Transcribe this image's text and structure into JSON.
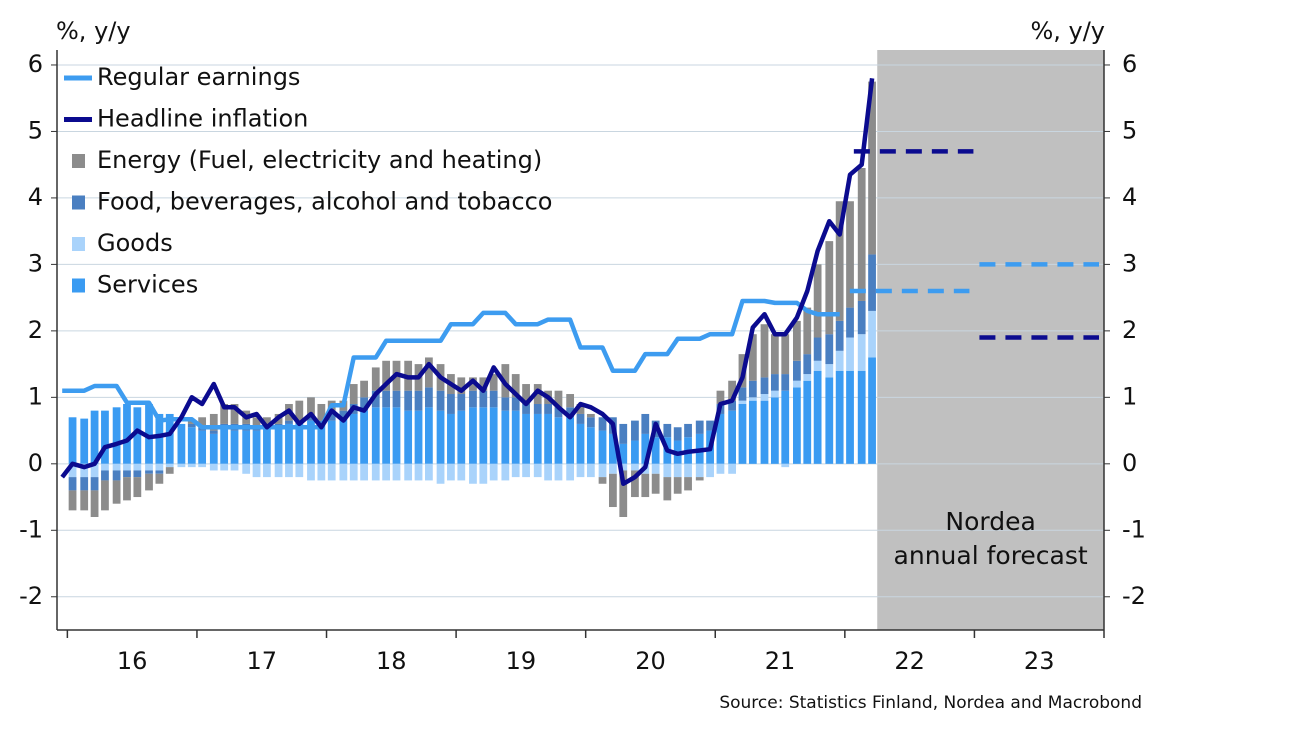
{
  "chart_data": {
    "type": "bar",
    "ylabel": "%, y/y",
    "y2label": "%, y/y",
    "source": "Source: Statistics Finland, Nordea and Macrobond",
    "forecast_label": [
      "Nordea",
      "annual forecast"
    ],
    "shade_xlim": [
      2022.25,
      2024.0
    ],
    "shade_color": "#c0c0c0",
    "xlim": [
      2015.92,
      2024.0
    ],
    "xticks": [
      {
        "value": 2016.5,
        "label": "16"
      },
      {
        "value": 2017.5,
        "label": "17"
      },
      {
        "value": 2018.5,
        "label": "18"
      },
      {
        "value": 2019.5,
        "label": "19"
      },
      {
        "value": 2020.5,
        "label": "20"
      },
      {
        "value": 2021.5,
        "label": "21"
      },
      {
        "value": 2022.5,
        "label": "22"
      },
      {
        "value": 2023.5,
        "label": "23"
      }
    ],
    "xminor": [
      2016,
      2017,
      2018,
      2019,
      2020,
      2021,
      2022,
      2023,
      2024
    ],
    "ylim": [
      -2.5,
      6.15
    ],
    "yticks": [
      -2,
      -1,
      0,
      1,
      2,
      3,
      4,
      5,
      6
    ],
    "y2lim": [
      -2.5,
      6.15
    ],
    "y2ticks": [
      -2,
      -1,
      0,
      1,
      2,
      3,
      4,
      5,
      6
    ],
    "grid": true,
    "legend": "top-left",
    "forecast_x": [
      2022.5,
      2023.5
    ],
    "x": [
      2015.96,
      2016.04,
      2016.13,
      2016.21,
      2016.29,
      2016.38,
      2016.46,
      2016.54,
      2016.63,
      2016.71,
      2016.79,
      2016.88,
      2016.96,
      2017.04,
      2017.13,
      2017.21,
      2017.29,
      2017.38,
      2017.46,
      2017.54,
      2017.63,
      2017.71,
      2017.79,
      2017.88,
      2017.96,
      2018.04,
      2018.13,
      2018.21,
      2018.29,
      2018.38,
      2018.46,
      2018.54,
      2018.63,
      2018.71,
      2018.79,
      2018.88,
      2018.96,
      2019.04,
      2019.13,
      2019.21,
      2019.29,
      2019.38,
      2019.46,
      2019.54,
      2019.63,
      2019.71,
      2019.79,
      2019.88,
      2019.96,
      2020.04,
      2020.13,
      2020.21,
      2020.29,
      2020.38,
      2020.46,
      2020.54,
      2020.63,
      2020.71,
      2020.79,
      2020.88,
      2020.96,
      2021.04,
      2021.13,
      2021.21,
      2021.29,
      2021.38,
      2021.46,
      2021.54,
      2021.63,
      2021.71,
      2021.79,
      2021.88,
      2021.96,
      2022.04,
      2022.13,
      2022.21
    ],
    "series": [
      {
        "name": "Regular earnings",
        "type": "line",
        "color": "#3d9cf0",
        "forecast_values": [
          2.6,
          3.0
        ],
        "values": [
          1.1,
          1.1,
          1.1,
          1.17,
          1.17,
          1.17,
          0.92,
          0.92,
          0.92,
          0.65,
          0.67,
          0.67,
          0.67,
          0.55,
          0.55,
          0.55,
          0.55,
          0.55,
          0.55,
          0.55,
          0.55,
          0.55,
          0.55,
          0.55,
          0.55,
          0.88,
          0.88,
          1.6,
          1.6,
          1.6,
          1.85,
          1.85,
          1.85,
          1.85,
          1.85,
          1.85,
          2.1,
          2.1,
          2.1,
          2.27,
          2.27,
          2.27,
          2.1,
          2.1,
          2.1,
          2.17,
          2.17,
          2.17,
          1.75,
          1.75,
          1.75,
          1.4,
          1.4,
          1.4,
          1.65,
          1.65,
          1.65,
          1.88,
          1.88,
          1.88,
          1.95,
          1.95,
          1.95,
          2.45,
          2.45,
          2.45,
          2.42,
          2.42,
          2.42,
          2.3,
          2.25,
          2.25,
          2.25,
          null,
          null,
          null
        ]
      },
      {
        "name": "Headline inflation",
        "type": "line",
        "color": "#0b0b8f",
        "forecast_values": [
          4.7,
          1.9
        ],
        "values": [
          -0.2,
          0.0,
          -0.05,
          0.0,
          0.25,
          0.3,
          0.35,
          0.5,
          0.4,
          0.42,
          0.45,
          0.7,
          1.0,
          0.9,
          1.2,
          0.85,
          0.85,
          0.7,
          0.75,
          0.55,
          0.7,
          0.8,
          0.6,
          0.75,
          0.55,
          0.8,
          0.65,
          0.85,
          0.8,
          1.05,
          1.2,
          1.35,
          1.3,
          1.3,
          1.5,
          1.3,
          1.2,
          1.1,
          1.25,
          1.1,
          1.45,
          1.2,
          1.05,
          0.9,
          1.1,
          1.0,
          0.85,
          0.7,
          0.9,
          0.85,
          0.75,
          0.6,
          -0.3,
          -0.2,
          -0.05,
          0.6,
          0.2,
          0.15,
          0.18,
          0.2,
          0.22,
          0.9,
          0.95,
          1.3,
          2.05,
          2.25,
          1.95,
          1.95,
          2.2,
          2.6,
          3.2,
          3.65,
          3.45,
          4.35,
          4.5,
          5.8
        ]
      },
      {
        "name": "Energy (Fuel, electricity and heating)",
        "type": "bar",
        "color": "#8c8c8c",
        "values": [
          null,
          -0.3,
          -0.3,
          -0.4,
          -0.45,
          -0.35,
          -0.35,
          -0.3,
          -0.25,
          -0.15,
          -0.1,
          0.0,
          0.05,
          0.15,
          0.25,
          0.3,
          0.3,
          0.2,
          0.15,
          0.1,
          0.15,
          0.25,
          0.3,
          0.3,
          0.25,
          0.2,
          0.15,
          0.3,
          0.25,
          0.35,
          0.45,
          0.45,
          0.45,
          0.4,
          0.45,
          0.4,
          0.3,
          0.25,
          0.2,
          0.2,
          0.25,
          0.5,
          0.35,
          0.3,
          0.3,
          0.2,
          0.25,
          0.2,
          0.15,
          0.05,
          -0.1,
          -0.5,
          -0.7,
          -0.4,
          -0.35,
          -0.3,
          -0.35,
          -0.25,
          -0.2,
          -0.05,
          0.0,
          0.2,
          0.3,
          0.5,
          0.7,
          0.8,
          0.6,
          0.6,
          0.6,
          0.7,
          1.1,
          1.4,
          1.8,
          1.6,
          2.0,
          2.6
        ]
      },
      {
        "name": "Food, beverages, alcohol and tobacco",
        "type": "bar",
        "color": "#4a7fc1",
        "values": [
          null,
          -0.2,
          -0.2,
          -0.2,
          -0.15,
          -0.15,
          -0.1,
          -0.1,
          -0.05,
          -0.05,
          0.0,
          0.0,
          0.05,
          0.05,
          0.05,
          0.05,
          0.1,
          0.1,
          0.05,
          0.05,
          0.05,
          0.05,
          0.05,
          0.05,
          0.05,
          0.1,
          0.1,
          0.15,
          0.2,
          0.25,
          0.25,
          0.25,
          0.3,
          0.3,
          0.3,
          0.3,
          0.3,
          0.25,
          0.25,
          0.25,
          0.25,
          0.2,
          0.2,
          0.15,
          0.15,
          0.15,
          0.15,
          0.15,
          0.15,
          0.15,
          0.2,
          0.25,
          0.3,
          0.3,
          0.3,
          0.25,
          0.2,
          0.2,
          0.2,
          0.2,
          0.15,
          0.15,
          0.15,
          0.2,
          0.25,
          0.25,
          0.25,
          0.25,
          0.3,
          0.3,
          0.35,
          0.45,
          0.45,
          0.45,
          0.5,
          0.85
        ]
      },
      {
        "name": "Goods",
        "type": "bar",
        "color": "#a9d3fb",
        "values": [
          null,
          -0.2,
          -0.2,
          -0.2,
          -0.1,
          -0.1,
          -0.1,
          -0.1,
          -0.1,
          -0.1,
          -0.05,
          -0.05,
          -0.05,
          -0.05,
          -0.1,
          -0.1,
          -0.1,
          -0.15,
          -0.2,
          -0.2,
          -0.2,
          -0.2,
          -0.2,
          -0.25,
          -0.25,
          -0.25,
          -0.25,
          -0.25,
          -0.25,
          -0.25,
          -0.25,
          -0.25,
          -0.25,
          -0.25,
          -0.25,
          -0.3,
          -0.25,
          -0.25,
          -0.3,
          -0.3,
          -0.25,
          -0.25,
          -0.2,
          -0.2,
          -0.2,
          -0.25,
          -0.25,
          -0.25,
          -0.2,
          -0.2,
          -0.2,
          -0.15,
          -0.1,
          -0.1,
          -0.15,
          -0.15,
          -0.2,
          -0.2,
          -0.2,
          -0.2,
          -0.2,
          -0.15,
          -0.15,
          0.05,
          0.05,
          0.1,
          0.1,
          -0.05,
          0.1,
          0.1,
          0.15,
          0.2,
          0.3,
          0.5,
          0.55,
          0.7
        ]
      },
      {
        "name": "Services",
        "type": "bar",
        "color": "#3a9bf2",
        "values": [
          null,
          0.7,
          0.68,
          0.8,
          0.8,
          0.85,
          0.9,
          0.85,
          0.9,
          0.75,
          0.75,
          0.6,
          0.55,
          0.5,
          0.45,
          0.55,
          0.5,
          0.5,
          0.5,
          0.55,
          0.55,
          0.6,
          0.6,
          0.65,
          0.6,
          0.65,
          0.7,
          0.75,
          0.8,
          0.85,
          0.85,
          0.85,
          0.8,
          0.8,
          0.85,
          0.8,
          0.75,
          0.8,
          0.85,
          0.85,
          0.85,
          0.8,
          0.8,
          0.75,
          0.75,
          0.75,
          0.7,
          0.7,
          0.6,
          0.55,
          0.5,
          0.45,
          0.3,
          0.35,
          0.45,
          0.4,
          0.4,
          0.35,
          0.4,
          0.45,
          0.5,
          0.75,
          0.8,
          0.9,
          0.95,
          0.95,
          1.0,
          1.1,
          1.15,
          1.25,
          1.4,
          1.3,
          1.4,
          1.4,
          1.4,
          1.6
        ]
      }
    ]
  }
}
